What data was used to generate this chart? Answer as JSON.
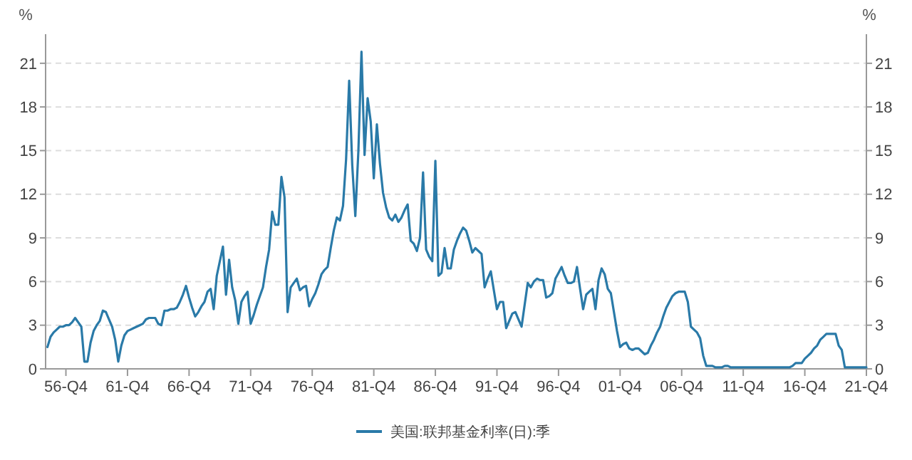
{
  "chart_data": {
    "type": "line",
    "ylabel": "%",
    "y2label": "%",
    "categories": [
      null,
      null,
      null,
      null,
      null,
      null,
      "56-Q4",
      null,
      null,
      null,
      null,
      null,
      null,
      null,
      null,
      null,
      null,
      null,
      null,
      null,
      null,
      null,
      null,
      null,
      null,
      null,
      "61-Q4",
      null,
      null,
      null,
      null,
      null,
      null,
      null,
      null,
      null,
      null,
      null,
      null,
      null,
      null,
      null,
      null,
      null,
      null,
      null,
      "66-Q4",
      null,
      null,
      null,
      null,
      null,
      null,
      null,
      null,
      null,
      null,
      null,
      null,
      null,
      null,
      null,
      null,
      null,
      null,
      null,
      "71-Q4",
      null,
      null,
      null,
      null,
      null,
      null,
      null,
      null,
      null,
      null,
      null,
      null,
      null,
      null,
      null,
      null,
      null,
      null,
      null,
      "76-Q4",
      null,
      null,
      null,
      null,
      null,
      null,
      null,
      null,
      null,
      null,
      null,
      null,
      null,
      null,
      null,
      null,
      null,
      null,
      null,
      "81-Q4",
      null,
      null,
      null,
      null,
      null,
      null,
      null,
      null,
      null,
      null,
      null,
      null,
      null,
      null,
      null,
      null,
      null,
      null,
      null,
      "86-Q4",
      null,
      null,
      null,
      null,
      null,
      null,
      null,
      null,
      null,
      null,
      null,
      null,
      null,
      null,
      null,
      null,
      null,
      null,
      null,
      "91-Q4",
      null,
      null,
      null,
      null,
      null,
      null,
      null,
      null,
      null,
      null,
      null,
      null,
      null,
      null,
      null,
      null,
      null,
      null,
      null,
      "96-Q4",
      null,
      null,
      null,
      null,
      null,
      null,
      null,
      null,
      null,
      null,
      null,
      null,
      null,
      null,
      null,
      null,
      null,
      null,
      null,
      "01-Q4",
      null,
      null,
      null,
      null,
      null,
      null,
      null,
      null,
      null,
      null,
      null,
      null,
      null,
      null,
      null,
      null,
      null,
      null,
      null,
      "06-Q4",
      null,
      null,
      null,
      null,
      null,
      null,
      null,
      null,
      null,
      null,
      null,
      null,
      null,
      null,
      null,
      null,
      null,
      null,
      null,
      "11-Q4",
      null,
      null,
      null,
      null,
      null,
      null,
      null,
      null,
      null,
      null,
      null,
      null,
      null,
      null,
      null,
      null,
      null,
      null,
      null,
      "16-Q4",
      null,
      null,
      null,
      null,
      null,
      null,
      null,
      null,
      null,
      null,
      null,
      null,
      null,
      null,
      null,
      null,
      null,
      null,
      null,
      "21-Q4"
    ],
    "ylim": [
      0,
      23
    ],
    "yticks": [
      0,
      3,
      6,
      9,
      12,
      15,
      18,
      21
    ],
    "y2lim": [
      0,
      23
    ],
    "y2ticks": [
      0,
      3,
      6,
      9,
      12,
      15,
      18,
      21
    ],
    "grid": "y",
    "legend": "bottom",
    "marker": "none",
    "line_style": "solid",
    "series": [
      {
        "name": "美国:联邦基金利率(日):季",
        "color": "#2a7aa8",
        "values": [
          1.5,
          2.2,
          2.5,
          2.7,
          2.9,
          2.9,
          3.0,
          3.0,
          3.2,
          3.5,
          3.2,
          2.9,
          0.5,
          0.5,
          1.8,
          2.6,
          3.0,
          3.3,
          4.0,
          3.9,
          3.4,
          2.9,
          2.0,
          0.5,
          1.6,
          2.3,
          2.6,
          2.7,
          2.8,
          2.9,
          3.0,
          3.1,
          3.4,
          3.5,
          3.5,
          3.5,
          3.1,
          3.0,
          4.0,
          4.0,
          4.1,
          4.1,
          4.2,
          4.6,
          5.1,
          5.7,
          4.9,
          4.2,
          3.6,
          3.9,
          4.3,
          4.6,
          5.3,
          5.5,
          4.1,
          6.4,
          7.4,
          8.4,
          5.1,
          7.5,
          5.6,
          4.7,
          3.1,
          4.6,
          5.0,
          5.3,
          3.1,
          3.7,
          4.4,
          5.0,
          5.6,
          7.0,
          8.2,
          10.8,
          9.9,
          9.9,
          13.2,
          11.8,
          3.9,
          5.6,
          5.9,
          6.2,
          5.4,
          5.6,
          5.7,
          4.3,
          4.8,
          5.2,
          5.8,
          6.5,
          6.8,
          7.0,
          8.3,
          9.5,
          10.4,
          10.2,
          11.2,
          14.4,
          19.8,
          14.0,
          10.5,
          15.0,
          21.8,
          14.7,
          18.6,
          17.0,
          13.1,
          16.8,
          14.1,
          12.1,
          11.1,
          10.4,
          10.2,
          10.6,
          10.1,
          10.4,
          10.9,
          11.3,
          8.8,
          8.6,
          8.1,
          9.0,
          13.5,
          8.2,
          7.7,
          7.4,
          14.3,
          6.4,
          6.6,
          8.3,
          6.9,
          6.9,
          8.2,
          8.8,
          9.3,
          9.7,
          9.5,
          8.8,
          8.0,
          8.3,
          8.1,
          7.9,
          5.6,
          6.2,
          6.7,
          5.4,
          4.1,
          4.6,
          4.6,
          2.8,
          3.3,
          3.8,
          3.9,
          3.4,
          2.9,
          4.4,
          5.9,
          5.6,
          6.0,
          6.2,
          6.1,
          6.1,
          4.9,
          5.0,
          5.2,
          6.2,
          6.6,
          7.0,
          6.4,
          5.9,
          5.9,
          6.0,
          7.0,
          5.5,
          4.1,
          5.1,
          5.3,
          5.5,
          4.1,
          6.1,
          6.9,
          6.5,
          5.5,
          5.2,
          3.9,
          2.6,
          1.5,
          1.7,
          1.8,
          1.4,
          1.3,
          1.4,
          1.4,
          1.2,
          1.0,
          1.1,
          1.6,
          2.0,
          2.5,
          2.9,
          3.6,
          4.2,
          4.6,
          5.0,
          5.2,
          5.3,
          5.3,
          5.3,
          4.6,
          2.9,
          2.7,
          2.5,
          2.1,
          0.9,
          0.2,
          0.2,
          0.2,
          0.1,
          0.1,
          0.1,
          0.2,
          0.2,
          0.1,
          0.1,
          0.1,
          0.1,
          0.1,
          0.1,
          0.1,
          0.1,
          0.1,
          0.1,
          0.1,
          0.1,
          0.1,
          0.1,
          0.1,
          0.1,
          0.1,
          0.1,
          0.1,
          0.1,
          0.2,
          0.4,
          0.4,
          0.4,
          0.7,
          0.9,
          1.1,
          1.4,
          1.6,
          2.0,
          2.2,
          2.4,
          2.4,
          2.4,
          2.4,
          1.6,
          1.3,
          0.1,
          0.1,
          0.1,
          0.1,
          0.1,
          0.1,
          0.1,
          0.1
        ]
      }
    ]
  }
}
